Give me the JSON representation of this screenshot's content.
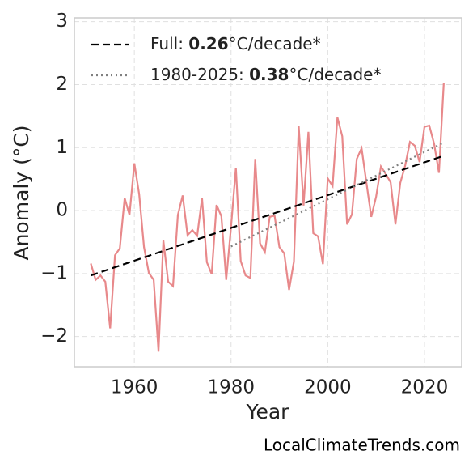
{
  "chart_data": {
    "type": "line",
    "xlabel": "Year",
    "ylabel": "Anomaly (°C)",
    "watermark": "LocalClimateTrends.com",
    "xlim": [
      1947.6,
      2027.7
    ],
    "ylim": [
      -2.48,
      3.06
    ],
    "xticks": [
      1960,
      1980,
      2000,
      2020
    ],
    "yticks": [
      {
        "value": -2,
        "label": "−2"
      },
      {
        "value": -1,
        "label": "−1"
      },
      0,
      1,
      2,
      3
    ],
    "grid": true,
    "legend": "upper left",
    "series": [
      {
        "color": "#e8898b",
        "style": "solid",
        "x": [
          1951,
          1952,
          1953,
          1954,
          1955,
          1956,
          1957,
          1958,
          1959,
          1960,
          1961,
          1962,
          1963,
          1964,
          1965,
          1966,
          1967,
          1968,
          1969,
          1970,
          1971,
          1972,
          1973,
          1974,
          1975,
          1976,
          1977,
          1978,
          1979,
          1980,
          1981,
          1982,
          1983,
          1984,
          1985,
          1986,
          1987,
          1988,
          1989,
          1990,
          1991,
          1992,
          1993,
          1994,
          1995,
          1996,
          1997,
          1998,
          1999,
          2000,
          2001,
          2002,
          2003,
          2004,
          2005,
          2006,
          2007,
          2008,
          2009,
          2010,
          2011,
          2012,
          2013,
          2014,
          2015,
          2016,
          2017,
          2018,
          2019,
          2020,
          2021,
          2022,
          2023,
          2024
        ],
        "values": [
          -0.84,
          -1.1,
          -1.03,
          -1.13,
          -1.87,
          -0.71,
          -0.6,
          0.2,
          -0.07,
          0.75,
          0.26,
          -0.58,
          -0.99,
          -1.1,
          -2.24,
          -0.47,
          -1.13,
          -1.2,
          -0.07,
          0.24,
          -0.39,
          -0.31,
          -0.4,
          0.2,
          -0.82,
          -1.01,
          0.09,
          -0.09,
          -1.1,
          -0.26,
          0.68,
          -0.8,
          -1.03,
          -1.07,
          0.82,
          -0.52,
          -0.66,
          -0.1,
          -0.08,
          -0.58,
          -0.68,
          -1.26,
          -0.81,
          1.34,
          0.08,
          1.25,
          -0.36,
          -0.41,
          -0.85,
          0.51,
          0.39,
          1.48,
          1.18,
          -0.22,
          -0.06,
          0.82,
          0.99,
          0.44,
          -0.1,
          0.22,
          0.7,
          0.58,
          0.45,
          -0.22,
          0.44,
          0.71,
          1.09,
          1.03,
          0.77,
          1.33,
          1.35,
          1.06,
          0.6,
          2.03
        ]
      },
      {
        "name": "Full:",
        "rate": "0.26",
        "unit": "°C/decade*",
        "color": "#000000",
        "style": "dashed",
        "x": [
          1951,
          2024
        ],
        "values": [
          -1.03,
          0.87
        ]
      },
      {
        "name": "1980-2025:",
        "rate": "0.38",
        "unit": "°C/decade*",
        "color": "#808080",
        "style": "dotted",
        "x": [
          1980,
          2024
        ],
        "values": [
          -0.57,
          1.08
        ]
      }
    ]
  }
}
